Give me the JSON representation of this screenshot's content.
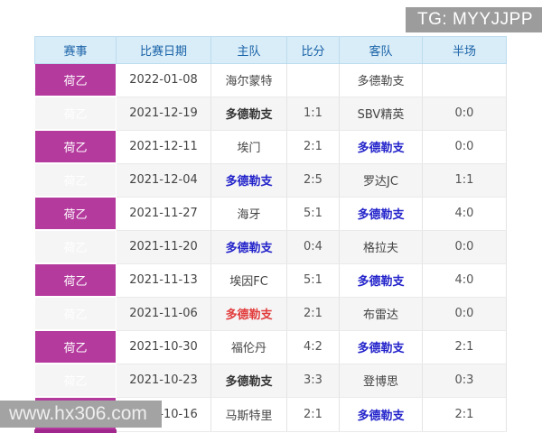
{
  "badge": {
    "text": "TG: MYYJJPP"
  },
  "watermark": {
    "text": "www.hx306.com"
  },
  "colors": {
    "league_magenta": "#b53a9e",
    "league_bottom_strip": "#a1278c",
    "header_bg": "#d9edf8",
    "header_text": "#1b63a8",
    "loss_blue": "#2323cb",
    "win_red": "#e23b3b",
    "badge_gray": "#9c9c9c"
  },
  "table": {
    "headers": [
      "赛事",
      "比赛日期",
      "主队",
      "比分",
      "客队",
      "半场"
    ],
    "rows": [
      {
        "league": "荷乙",
        "date": "2022-01-08",
        "home": "海尔蒙特",
        "score": "",
        "away": "多德勒支",
        "half": "",
        "home_class": "",
        "away_class": ""
      },
      {
        "league": "荷乙",
        "date": "2021-12-19",
        "home": "多德勒支",
        "score": "1:1",
        "away": "SBV精英",
        "half": "0:0",
        "home_class": "draw",
        "away_class": ""
      },
      {
        "league": "荷乙",
        "date": "2021-12-11",
        "home": "埃门",
        "score": "2:1",
        "away": "多德勒支",
        "half": "0:0",
        "home_class": "",
        "away_class": "loss"
      },
      {
        "league": "荷乙",
        "date": "2021-12-04",
        "home": "多德勒支",
        "score": "2:5",
        "away": "罗达JC",
        "half": "1:1",
        "home_class": "loss",
        "away_class": ""
      },
      {
        "league": "荷乙",
        "date": "2021-11-27",
        "home": "海牙",
        "score": "5:1",
        "away": "多德勒支",
        "half": "4:0",
        "home_class": "",
        "away_class": "loss"
      },
      {
        "league": "荷乙",
        "date": "2021-11-20",
        "home": "多德勒支",
        "score": "0:4",
        "away": "格拉夫",
        "half": "0:0",
        "home_class": "loss",
        "away_class": ""
      },
      {
        "league": "荷乙",
        "date": "2021-11-13",
        "home": "埃因FC",
        "score": "5:1",
        "away": "多德勒支",
        "half": "4:0",
        "home_class": "",
        "away_class": "loss"
      },
      {
        "league": "荷乙",
        "date": "2021-11-06",
        "home": "多德勒支",
        "score": "2:1",
        "away": "布雷达",
        "half": "0:0",
        "home_class": "win",
        "away_class": ""
      },
      {
        "league": "荷乙",
        "date": "2021-10-30",
        "home": "福伦丹",
        "score": "4:2",
        "away": "多德勒支",
        "half": "2:1",
        "home_class": "",
        "away_class": "loss"
      },
      {
        "league": "荷乙",
        "date": "2021-10-23",
        "home": "多德勒支",
        "score": "3:3",
        "away": "登博思",
        "half": "0:3",
        "home_class": "draw",
        "away_class": ""
      },
      {
        "league": "荷乙",
        "date": "2021-10-16",
        "home": "马斯特里",
        "score": "2:1",
        "away": "多德勒支",
        "half": "2:1",
        "home_class": "",
        "away_class": "loss"
      }
    ]
  }
}
